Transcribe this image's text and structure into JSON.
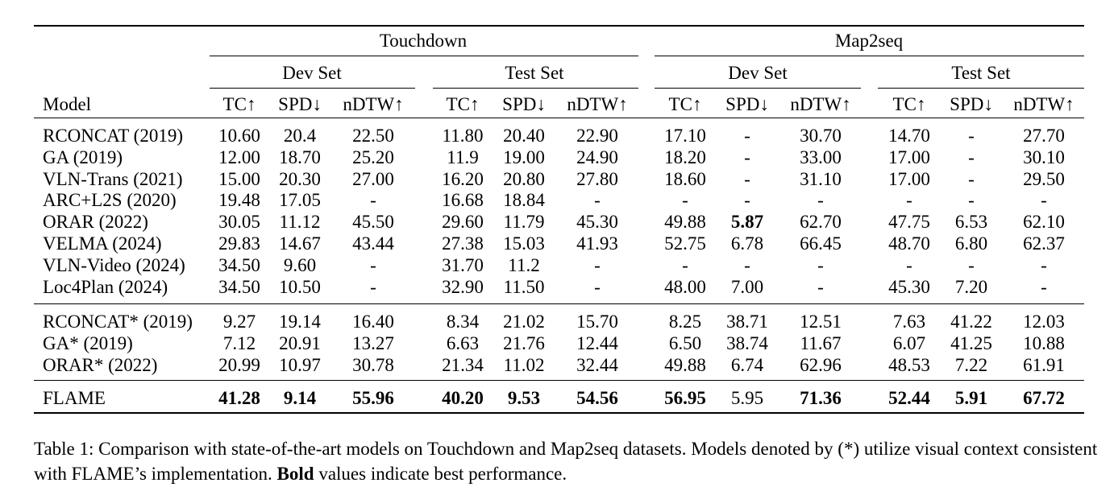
{
  "table": {
    "group_headers": [
      "Touchdown",
      "Map2seq"
    ],
    "set_headers": [
      "Dev Set",
      "Test Set",
      "Dev Set",
      "Test Set"
    ],
    "model_header": "Model",
    "metric_headers": [
      "TC↑",
      "SPD↓",
      "nDTW↑",
      "TC↑",
      "SPD↓",
      "nDTW↑",
      "TC↑",
      "SPD↓",
      "nDTW↑",
      "TC↑",
      "SPD↓",
      "nDTW↑"
    ],
    "sections": [
      [
        {
          "model": "RCONCAT (2019)",
          "values": [
            "10.60",
            "20.4",
            "22.50",
            "11.80",
            "20.40",
            "22.90",
            "17.10",
            "-",
            "30.70",
            "14.70",
            "-",
            "27.70"
          ],
          "bold": []
        },
        {
          "model": "GA (2019)",
          "values": [
            "12.00",
            "18.70",
            "25.20",
            "11.9",
            "19.00",
            "24.90",
            "18.20",
            "-",
            "33.00",
            "17.00",
            "-",
            "30.10"
          ],
          "bold": []
        },
        {
          "model": "VLN-Trans (2021)",
          "values": [
            "15.00",
            "20.30",
            "27.00",
            "16.20",
            "20.80",
            "27.80",
            "18.60",
            "-",
            "31.10",
            "17.00",
            "-",
            "29.50"
          ],
          "bold": []
        },
        {
          "model": "ARC+L2S (2020)",
          "values": [
            "19.48",
            "17.05",
            "-",
            "16.68",
            "18.84",
            "-",
            "-",
            "-",
            "-",
            "-",
            "-",
            "-"
          ],
          "bold": []
        },
        {
          "model": "ORAR (2022)",
          "values": [
            "30.05",
            "11.12",
            "45.50",
            "29.60",
            "11.79",
            "45.30",
            "49.88",
            "5.87",
            "62.70",
            "47.75",
            "6.53",
            "62.10"
          ],
          "bold": [
            7
          ]
        },
        {
          "model": "VELMA (2024)",
          "values": [
            "29.83",
            "14.67",
            "43.44",
            "27.38",
            "15.03",
            "41.93",
            "52.75",
            "6.78",
            "66.45",
            "48.70",
            "6.80",
            "62.37"
          ],
          "bold": []
        },
        {
          "model": "VLN-Video (2024)",
          "values": [
            "34.50",
            "9.60",
            "-",
            "31.70",
            "11.2",
            "-",
            "-",
            "-",
            "-",
            "-",
            "-",
            "-"
          ],
          "bold": []
        },
        {
          "model": "Loc4Plan (2024)",
          "values": [
            "34.50",
            "10.50",
            "-",
            "32.90",
            "11.50",
            "-",
            "48.00",
            "7.00",
            "-",
            "45.30",
            "7.20",
            "-"
          ],
          "bold": []
        }
      ],
      [
        {
          "model": "RCONCAT* (2019)",
          "values": [
            "9.27",
            "19.14",
            "16.40",
            "8.34",
            "21.02",
            "15.70",
            "8.25",
            "38.71",
            "12.51",
            "7.63",
            "41.22",
            "12.03"
          ],
          "bold": []
        },
        {
          "model": "GA* (2019)",
          "values": [
            "7.12",
            "20.91",
            "13.27",
            "6.63",
            "21.76",
            "12.44",
            "6.50",
            "38.74",
            "11.67",
            "6.07",
            "41.25",
            "10.88"
          ],
          "bold": []
        },
        {
          "model": "ORAR* (2022)",
          "values": [
            "20.99",
            "10.97",
            "30.78",
            "21.34",
            "11.02",
            "32.44",
            "49.88",
            "6.74",
            "62.96",
            "48.53",
            "7.22",
            "61.91"
          ],
          "bold": []
        }
      ],
      [
        {
          "model": "FLAME",
          "values": [
            "41.28",
            "9.14",
            "55.96",
            "40.20",
            "9.53",
            "54.56",
            "56.95",
            "5.95",
            "71.36",
            "52.44",
            "5.91",
            "67.72"
          ],
          "bold": [
            0,
            1,
            2,
            3,
            4,
            5,
            6,
            8,
            9,
            10,
            11
          ]
        }
      ]
    ]
  },
  "caption": {
    "label": "Table 1:",
    "text_before_bold": " Comparison with state-of-the-art models on Touchdown and Map2seq datasets. Models denoted by (*) utilize visual context consistent with FLAME’s implementation. ",
    "bold_word": "Bold",
    "text_after_bold": " values indicate best performance."
  }
}
